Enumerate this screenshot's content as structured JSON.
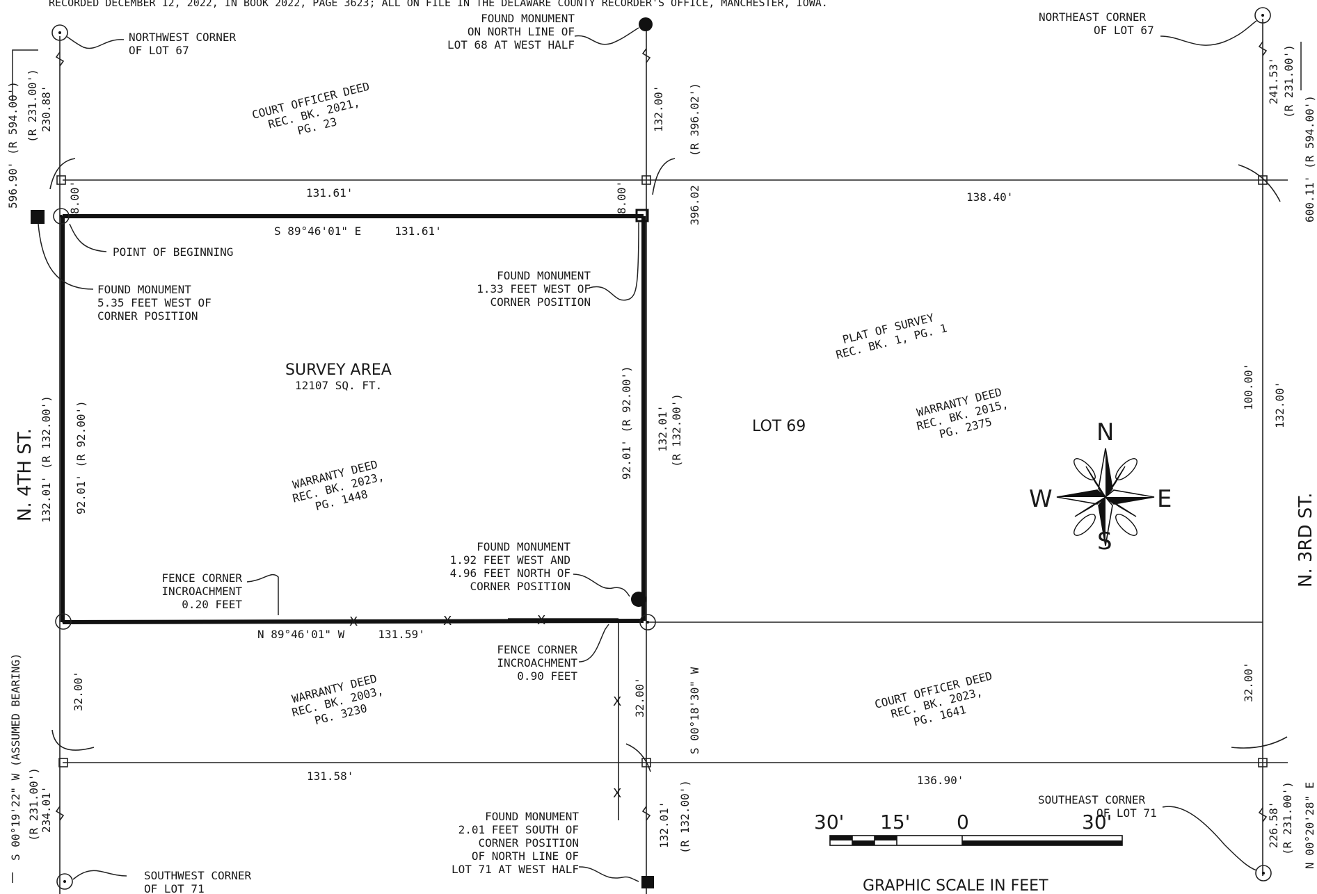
{
  "header_note": "RECORDED DECEMBER 12, 2022, IN BOOK 2022, PAGE 3623; ALL ON FILE IN THE DELAWARE COUNTY RECORDER'S OFFICE, MANCHESTER, IOWA.",
  "streets": {
    "west": "N. 4TH ST.",
    "east": "N. 3RD ST."
  },
  "corners": {
    "nw": [
      "NORTHWEST CORNER",
      "OF LOT 67"
    ],
    "ne": [
      "NORTHEAST CORNER",
      "OF LOT 67"
    ],
    "sw": [
      "SOUTHWEST CORNER",
      "OF LOT 71"
    ],
    "se": [
      "SOUTHEAST CORNER",
      "OF LOT 71"
    ]
  },
  "monuments": {
    "top_mid": [
      "FOUND MONUMENT",
      "ON NORTH LINE OF",
      "LOT 68 AT WEST HALF"
    ],
    "pob": "POINT OF BEGINNING",
    "west": [
      "FOUND MONUMENT",
      "5.35 FEET WEST OF",
      "CORNER POSITION"
    ],
    "ne_survey": [
      "FOUND MONUMENT",
      "1.33 FEET WEST OF",
      "CORNER POSITION"
    ],
    "se_survey": [
      "FOUND MONUMENT",
      "1.92 FEET WEST AND",
      "4.96 FEET NORTH OF",
      "CORNER POSITION"
    ],
    "bottom_mid": [
      "FOUND MONUMENT",
      "2.01 FEET SOUTH OF",
      "CORNER POSITION",
      "OF NORTH LINE OF",
      "LOT 71 AT WEST HALF"
    ]
  },
  "fences": {
    "west": [
      "FENCE CORNER",
      "INCROACHMENT",
      "0.20 FEET"
    ],
    "east": [
      "FENCE CORNER",
      "INCROACHMENT",
      "0.90 FEET"
    ]
  },
  "deeds": {
    "court_2021": [
      "COURT OFFICER DEED",
      "REC. BK. 2021,",
      "PG. 23"
    ],
    "plat": [
      "PLAT OF SURVEY",
      "REC. BK. 1, PG. 1"
    ],
    "warranty_2015": [
      "WARRANTY DEED",
      "REC. BK. 2015,",
      "PG. 2375"
    ],
    "warranty_2023": [
      "WARRANTY DEED",
      "REC. BK. 2023,",
      "PG. 1448"
    ],
    "warranty_2003": [
      "WARRANTY DEED",
      "REC. BK. 2003,",
      "PG. 3230"
    ],
    "court_2023": [
      "COURT OFFICER DEED",
      "REC. BK. 2023,",
      "PG. 1641"
    ]
  },
  "areas": {
    "survey_title": "SURVEY AREA",
    "survey_size": "12107 SQ. FT.",
    "lot": "LOT 69"
  },
  "dims": {
    "top_left": "131.61'",
    "top_right": "138.40'",
    "north_bearing": "S 89°46'01\" E     131.61'",
    "south_bearing": "N 89°46'01\" W     131.59'",
    "bottom_left": "131.58'",
    "bottom_right": "136.90'",
    "west_total": "596.90' (R 594.00')",
    "west_upper": "(R 231.00')",
    "west_upper2": "230.88'",
    "west_8": "8.00'",
    "mid_8": "8.00'",
    "mid_upper": "132.00'",
    "mid_r396": "(R 396.02')",
    "mid_396": "396.02",
    "west_survey": "132.01' (R 132.00')",
    "west_inner": "92.01' (R 92.00')",
    "mid_inner": "92.01' (R 92.00')",
    "mid_13201": "132.01'",
    "mid_r132": "(R 132.00')",
    "west_32": "32.00'",
    "mid_32": "32.00'",
    "mid_bearing": "S 00°18'30\" W",
    "west_bearing": "S 00°19'22\" W (ASSUMED BEARING)",
    "west_lower_r": "(R 231.00')",
    "west_lower": "234.01'",
    "mid_lower": "132.01'",
    "mid_lower_r": "(R 132.00')",
    "east_upper": "241.53'",
    "east_upper_r": "(R 231.00')",
    "east_total": "600.11' (R 594.00')",
    "east_100": "100.00'",
    "east_132": "132.00'",
    "east_32": "32.00'",
    "east_lower": "226.58'",
    "east_lower_r": "(R 231.00')",
    "east_bearing": "N 00°20'28\" E"
  },
  "compass": {
    "n": "N",
    "s": "S",
    "e": "E",
    "w": "W"
  },
  "graphic_scale": {
    "labels": [
      "30'",
      "15'",
      "0",
      "30'"
    ],
    "caption": "GRAPHIC SCALE IN FEET"
  }
}
